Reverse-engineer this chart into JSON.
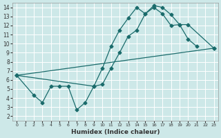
{
  "xlabel": "Humidex (Indice chaleur)",
  "bg_color": "#cde8e8",
  "line_color": "#1a6b6b",
  "grid_color": "#b8d8d8",
  "xlim": [
    -0.5,
    23.5
  ],
  "ylim": [
    1.5,
    14.5
  ],
  "xticks": [
    0,
    1,
    2,
    3,
    4,
    5,
    6,
    7,
    8,
    9,
    10,
    11,
    12,
    13,
    14,
    15,
    16,
    17,
    18,
    19,
    20,
    21,
    22,
    23
  ],
  "yticks": [
    2,
    3,
    4,
    5,
    6,
    7,
    8,
    9,
    10,
    11,
    12,
    13,
    14
  ],
  "line1_x": [
    0,
    9,
    10,
    11,
    12,
    13,
    14,
    15,
    16,
    17,
    18,
    19,
    20,
    21
  ],
  "line1_y": [
    6.5,
    5.3,
    7.3,
    9.7,
    11.5,
    12.8,
    14.0,
    13.3,
    14.2,
    14.0,
    13.2,
    12.1,
    10.5,
    9.7
  ],
  "line2_x": [
    0,
    2,
    3,
    4,
    5,
    6,
    7,
    8,
    9,
    10,
    11,
    12,
    13,
    14,
    15,
    16,
    17,
    18,
    19,
    20,
    23
  ],
  "line2_y": [
    6.5,
    4.3,
    3.5,
    5.3,
    5.3,
    5.3,
    2.7,
    3.5,
    5.3,
    5.5,
    7.3,
    9.0,
    10.8,
    11.5,
    13.3,
    14.0,
    13.3,
    12.0,
    12.1,
    12.1,
    9.5
  ],
  "line3_x": [
    0,
    23
  ],
  "line3_y": [
    6.5,
    9.5
  ]
}
